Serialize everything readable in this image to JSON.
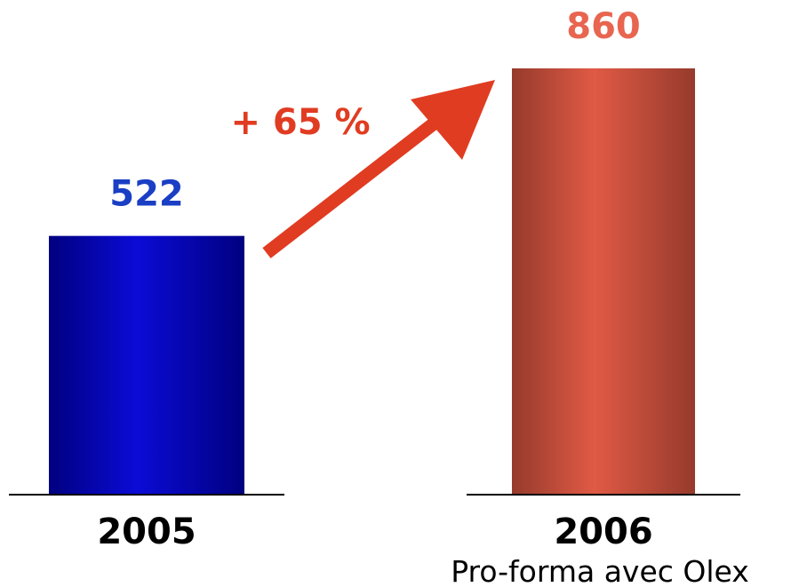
{
  "chart_data": {
    "type": "bar",
    "categories": [
      "2005",
      "2006"
    ],
    "subcategory_labels": [
      "",
      "Pro-forma avec Olex"
    ],
    "values": [
      522,
      860
    ],
    "value_labels": [
      "522",
      "860"
    ],
    "annotation": "+ 65 %",
    "title": "",
    "xlabel": "",
    "ylabel": "",
    "ylim": [
      0,
      860
    ],
    "grid": false,
    "legend": "none"
  },
  "colors": {
    "bar_2005": "#0b0bd6",
    "bar_2005_dark": "#000080",
    "bar_2006": "#e05a45",
    "bar_2006_dark": "#963a2c",
    "label_2005": "#1a3fc4",
    "label_2006": "#e8654f",
    "arrow": "#e03c22",
    "axis": "#000000"
  }
}
